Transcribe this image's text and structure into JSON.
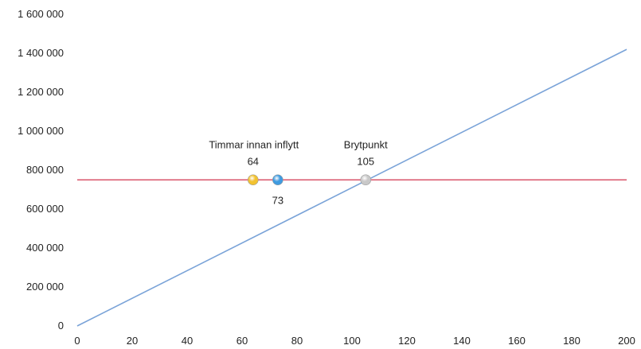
{
  "chart_data": {
    "type": "line",
    "title": "",
    "xlabel": "",
    "ylabel": "",
    "xlim": [
      0,
      200
    ],
    "ylim": [
      0,
      1600000
    ],
    "grid": false,
    "legend": "none",
    "x_ticks": [
      "0",
      "20",
      "40",
      "60",
      "80",
      "100",
      "120",
      "140",
      "160",
      "180",
      "200"
    ],
    "y_ticks": [
      "0",
      "200 000",
      "400 000",
      "600 000",
      "800 000",
      "1 000 000",
      "1 200 000",
      "1 400 000",
      "1 600 000"
    ],
    "series": [
      {
        "color": "#7aa3d8",
        "x": [
          0,
          200
        ],
        "y": [
          0,
          1420000
        ]
      },
      {
        "color": "#d9556b",
        "x": [
          0,
          200
        ],
        "y": [
          750000,
          750000
        ]
      }
    ],
    "points": [
      {
        "x": 64,
        "y": 750000,
        "color": "#f2c230",
        "label": "64",
        "caption": "Timmar innan inflytt"
      },
      {
        "x": 73,
        "y": 750000,
        "color": "#3f9be0",
        "label": "73",
        "caption": ""
      },
      {
        "x": 105,
        "y": 750000,
        "color": "#c8c8c8",
        "label": "105",
        "caption": "Brytpunkt"
      }
    ]
  }
}
